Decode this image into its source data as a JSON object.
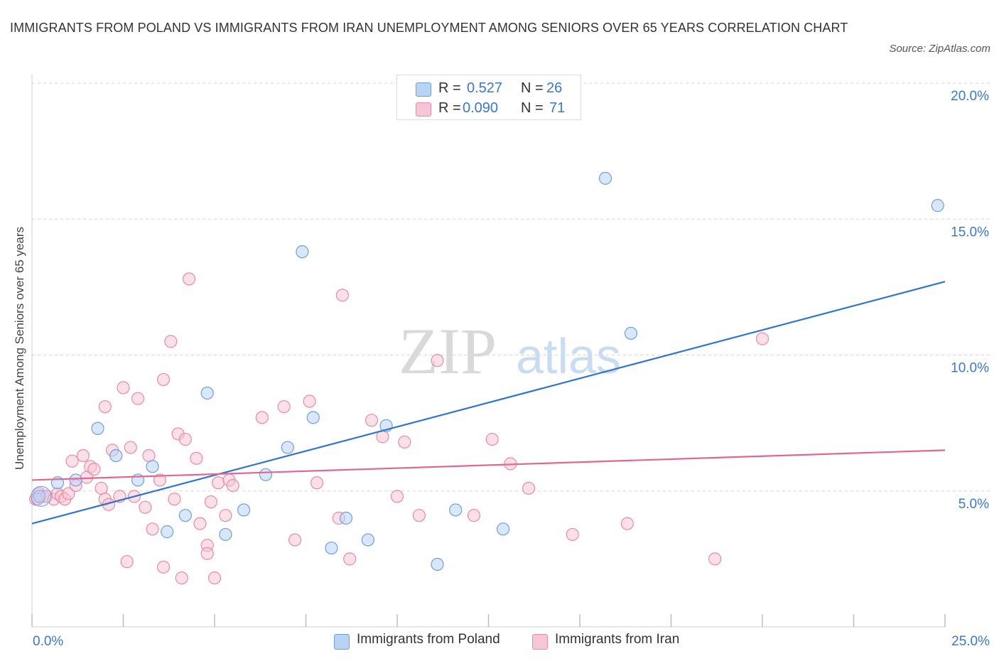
{
  "title": "IMMIGRANTS FROM POLAND VS IMMIGRANTS FROM IRAN UNEMPLOYMENT AMONG SENIORS OVER 65 YEARS CORRELATION CHART",
  "source": "Source: ZipAtlas.com",
  "watermark": {
    "zip": "ZIP",
    "atlas": "atlas"
  },
  "legend_top": {
    "poland": {
      "r_label": "R =",
      "r_value": "0.527",
      "n_label": "N =",
      "n_value": "26"
    },
    "iran": {
      "r_label": "R =",
      "r_value": "0.090",
      "n_label": "N =",
      "n_value": "71"
    }
  },
  "legend_bottom": {
    "poland": "Immigrants from Poland",
    "iran": "Immigrants from Iran"
  },
  "colors": {
    "poland_fill": "#b9d3f5",
    "poland_stroke": "#6f9fdd",
    "poland_line": "#2f74cf",
    "iran_fill": "#f7c6d6",
    "iran_stroke": "#e98aa9",
    "iran_line": "#e2678f",
    "tick_label": "#3a78c9",
    "grid": "#d6d6d6"
  },
  "chart_data": {
    "type": "scatter",
    "ylabel": "Unemployment Among Seniors over 65 years",
    "xlabel": "",
    "xlim": [
      0,
      25
    ],
    "ylim": [
      0,
      20
    ],
    "x_tick_labels": {
      "left": "0.0%",
      "right": "25.0%"
    },
    "y_ticks": [
      {
        "value": 5,
        "label": "5.0%"
      },
      {
        "value": 10,
        "label": "10.0%"
      },
      {
        "value": 15,
        "label": "15.0%"
      },
      {
        "value": 20,
        "label": "20.0%"
      }
    ],
    "grid": true,
    "series": [
      {
        "name": "Immigrants from Poland",
        "trend": {
          "x": [
            0,
            25
          ],
          "y": [
            3.8,
            12.7
          ]
        },
        "points": [
          [
            0.2,
            4.8
          ],
          [
            0.7,
            5.3
          ],
          [
            1.2,
            5.4
          ],
          [
            1.8,
            7.3
          ],
          [
            2.3,
            6.3
          ],
          [
            2.9,
            5.4
          ],
          [
            3.3,
            5.9
          ],
          [
            3.7,
            3.5
          ],
          [
            4.2,
            4.1
          ],
          [
            4.8,
            8.6
          ],
          [
            5.3,
            3.4
          ],
          [
            5.8,
            4.3
          ],
          [
            6.4,
            5.6
          ],
          [
            7.0,
            6.6
          ],
          [
            7.4,
            13.8
          ],
          [
            7.7,
            7.7
          ],
          [
            8.2,
            2.9
          ],
          [
            8.6,
            4.0
          ],
          [
            9.2,
            3.2
          ],
          [
            9.7,
            7.4
          ],
          [
            11.1,
            2.3
          ],
          [
            11.6,
            4.3
          ],
          [
            12.9,
            3.6
          ],
          [
            15.7,
            16.5
          ],
          [
            16.4,
            10.8
          ],
          [
            24.8,
            15.5
          ]
        ]
      },
      {
        "name": "Immigrants from Iran",
        "trend": {
          "x": [
            0,
            25
          ],
          "y": [
            5.4,
            6.5
          ]
        },
        "points": [
          [
            0.1,
            4.7
          ],
          [
            0.2,
            4.9
          ],
          [
            0.3,
            4.8
          ],
          [
            0.4,
            4.8
          ],
          [
            0.6,
            4.7
          ],
          [
            0.7,
            4.9
          ],
          [
            0.8,
            4.8
          ],
          [
            0.9,
            4.7
          ],
          [
            1.0,
            4.9
          ],
          [
            1.1,
            6.1
          ],
          [
            1.2,
            5.2
          ],
          [
            1.4,
            6.3
          ],
          [
            1.5,
            5.5
          ],
          [
            1.6,
            5.9
          ],
          [
            1.7,
            5.8
          ],
          [
            1.9,
            5.1
          ],
          [
            2.0,
            4.7
          ],
          [
            2.0,
            8.1
          ],
          [
            2.1,
            4.5
          ],
          [
            2.2,
            6.5
          ],
          [
            2.4,
            4.8
          ],
          [
            2.5,
            8.8
          ],
          [
            2.6,
            2.4
          ],
          [
            2.7,
            6.6
          ],
          [
            2.8,
            4.8
          ],
          [
            2.9,
            8.4
          ],
          [
            3.1,
            4.4
          ],
          [
            3.2,
            6.3
          ],
          [
            3.3,
            3.6
          ],
          [
            3.5,
            5.4
          ],
          [
            3.6,
            9.1
          ],
          [
            3.6,
            2.2
          ],
          [
            3.8,
            10.5
          ],
          [
            3.9,
            4.7
          ],
          [
            4.0,
            7.1
          ],
          [
            4.1,
            1.8
          ],
          [
            4.2,
            6.9
          ],
          [
            4.3,
            12.8
          ],
          [
            4.5,
            6.2
          ],
          [
            4.6,
            3.8
          ],
          [
            4.8,
            3.0
          ],
          [
            4.8,
            2.7
          ],
          [
            4.9,
            4.6
          ],
          [
            5.0,
            1.8
          ],
          [
            5.1,
            5.3
          ],
          [
            5.3,
            4.1
          ],
          [
            5.4,
            5.4
          ],
          [
            5.5,
            5.2
          ],
          [
            6.3,
            7.7
          ],
          [
            6.9,
            8.1
          ],
          [
            7.2,
            3.2
          ],
          [
            7.6,
            8.3
          ],
          [
            7.8,
            5.3
          ],
          [
            8.4,
            4.0
          ],
          [
            8.5,
            12.2
          ],
          [
            8.7,
            2.5
          ],
          [
            9.3,
            7.6
          ],
          [
            9.6,
            7.0
          ],
          [
            10.0,
            4.8
          ],
          [
            10.2,
            6.8
          ],
          [
            10.6,
            4.1
          ],
          [
            11.1,
            9.8
          ],
          [
            12.1,
            4.1
          ],
          [
            12.6,
            6.9
          ],
          [
            13.1,
            6.0
          ],
          [
            13.6,
            5.1
          ],
          [
            14.8,
            3.4
          ],
          [
            16.3,
            3.8
          ],
          [
            18.7,
            2.5
          ],
          [
            20.0,
            10.6
          ],
          [
            0.15,
            4.7
          ]
        ]
      }
    ]
  }
}
